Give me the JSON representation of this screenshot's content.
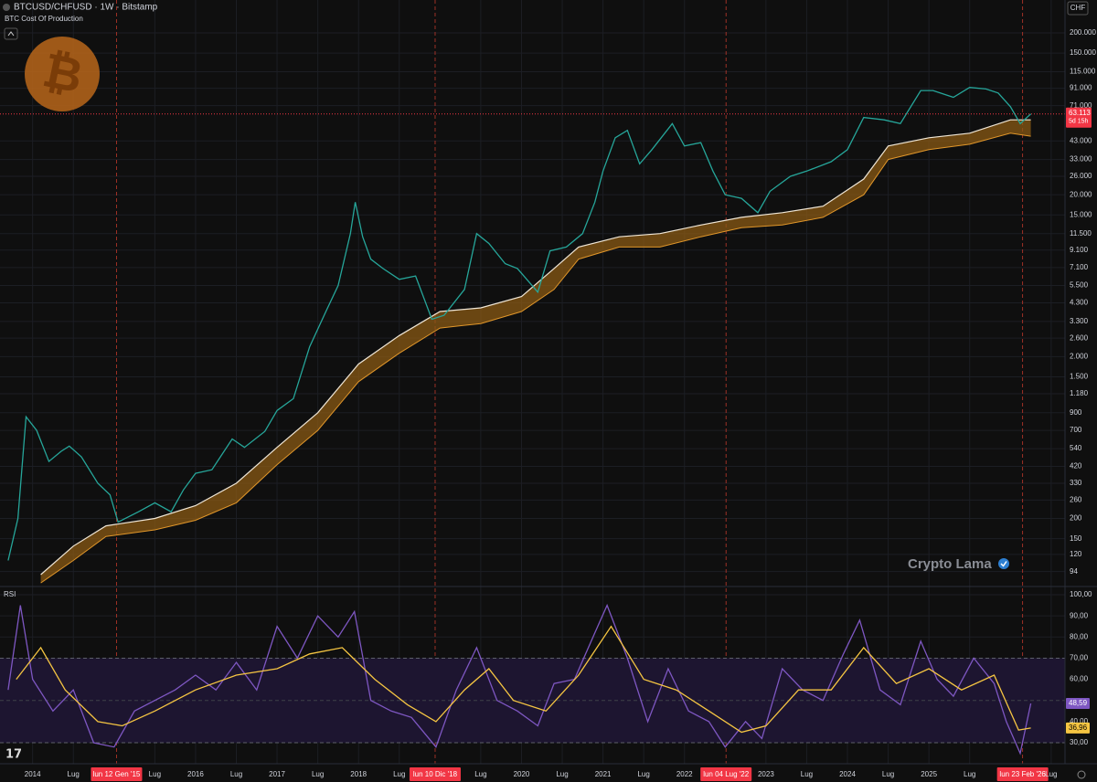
{
  "header": {
    "symbol": "BTCUSD/CHFUSD · 1W · Bitstamp",
    "indicator": "BTC Cost Of Production",
    "currency": "CHF",
    "watermark": "Crypto Lama"
  },
  "chart_data": [
    {
      "type": "line",
      "log_scale": true,
      "grid": true,
      "xlim": [
        2013.6,
        2026.67
      ],
      "ylim": [
        78,
        311000
      ],
      "yticks": [
        {
          "value": 200000,
          "label": "200.000"
        },
        {
          "value": 150000,
          "label": "150.000"
        },
        {
          "value": 115000,
          "label": "115.000"
        },
        {
          "value": 91000,
          "label": "91.000"
        },
        {
          "value": 71000,
          "label": "71.000"
        },
        {
          "value": 43000,
          "label": "43.000"
        },
        {
          "value": 33000,
          "label": "33.000"
        },
        {
          "value": 26000,
          "label": "26.000"
        },
        {
          "value": 20000,
          "label": "20.000"
        },
        {
          "value": 15000,
          "label": "15.000"
        },
        {
          "value": 11500,
          "label": "11.500"
        },
        {
          "value": 9100,
          "label": "9.100"
        },
        {
          "value": 7100,
          "label": "7.100"
        },
        {
          "value": 5500,
          "label": "5.500"
        },
        {
          "value": 4300,
          "label": "4.300"
        },
        {
          "value": 3300,
          "label": "3.300"
        },
        {
          "value": 2600,
          "label": "2.600"
        },
        {
          "value": 2000,
          "label": "2.000"
        },
        {
          "value": 1500,
          "label": "1.500"
        },
        {
          "value": 1180,
          "label": "1.180"
        },
        900,
        700,
        540,
        420,
        330,
        260,
        200,
        150,
        120,
        94
      ],
      "series": [
        {
          "color": "#26a69a",
          "x": [
            2013.7,
            2013.82,
            2013.92,
            2014.05,
            2014.2,
            2014.35,
            2014.45,
            2014.6,
            2014.8,
            2014.95,
            2015.05,
            2015.3,
            2015.5,
            2015.7,
            2015.85,
            2016.0,
            2016.2,
            2016.45,
            2016.6,
            2016.85,
            2017.0,
            2017.2,
            2017.4,
            2017.6,
            2017.75,
            2017.9,
            2017.96,
            2018.05,
            2018.15,
            2018.3,
            2018.5,
            2018.7,
            2018.9,
            2019.05,
            2019.3,
            2019.45,
            2019.6,
            2019.8,
            2019.95,
            2020.2,
            2020.35,
            2020.55,
            2020.75,
            2020.9,
            2021.0,
            2021.15,
            2021.3,
            2021.45,
            2021.6,
            2021.85,
            2022.0,
            2022.2,
            2022.35,
            2022.5,
            2022.7,
            2022.9,
            2023.05,
            2023.3,
            2023.5,
            2023.8,
            2024.0,
            2024.2,
            2024.45,
            2024.65,
            2024.9,
            2025.05,
            2025.3,
            2025.5,
            2025.7,
            2025.85,
            2026.0,
            2026.12,
            2026.25
          ],
          "values": [
            110,
            200,
            850,
            700,
            450,
            520,
            560,
            480,
            330,
            280,
            190,
            220,
            250,
            220,
            300,
            380,
            400,
            620,
            550,
            690,
            930,
            1100,
            2300,
            3800,
            5500,
            11500,
            18000,
            11000,
            8000,
            7000,
            6000,
            6300,
            3400,
            3600,
            5200,
            11500,
            10000,
            7500,
            7000,
            5000,
            9000,
            9500,
            11500,
            18000,
            28000,
            45000,
            50000,
            31000,
            38000,
            55000,
            40000,
            42000,
            28000,
            20000,
            19000,
            15500,
            21000,
            26000,
            28000,
            32000,
            38000,
            60000,
            58000,
            55000,
            88000,
            88000,
            80000,
            92000,
            90000,
            85000,
            70000,
            55000,
            63113
          ]
        }
      ],
      "cost_band": {
        "color": "#8a5a14",
        "upper_color": "#efe6d6",
        "lower_color": "#e0962a",
        "x": [
          2014.1,
          2014.5,
          2014.9,
          2015.5,
          2016.0,
          2016.5,
          2017.0,
          2017.5,
          2018.0,
          2018.5,
          2019.0,
          2019.5,
          2020.0,
          2020.4,
          2020.7,
          2021.2,
          2021.7,
          2022.2,
          2022.7,
          2023.2,
          2023.7,
          2024.2,
          2024.5,
          2025.0,
          2025.5,
          2026.0,
          2026.25
        ],
        "upper": [
          90,
          135,
          180,
          200,
          240,
          330,
          550,
          900,
          1800,
          2700,
          3800,
          4000,
          4700,
          7000,
          9500,
          11000,
          11500,
          13000,
          14500,
          15500,
          17000,
          25000,
          40000,
          45000,
          48000,
          58000,
          58000
        ],
        "lower": [
          80,
          110,
          155,
          170,
          195,
          250,
          430,
          700,
          1400,
          2100,
          3000,
          3200,
          3800,
          5200,
          8000,
          9500,
          9500,
          11000,
          12500,
          13000,
          14500,
          20000,
          33000,
          38000,
          41000,
          48000,
          46000
        ]
      },
      "last_price": {
        "value": 63113,
        "label": "63.113"
      },
      "countdown": "5d 15h"
    },
    {
      "type": "line",
      "title": "RSI",
      "grid": true,
      "xlim": [
        2013.6,
        2026.67
      ],
      "ylim": [
        21.8,
        102.6
      ],
      "band_range": [
        30,
        70
      ],
      "band_color": "#1d1530",
      "midline": 50,
      "yticks": [
        {
          "value": 100,
          "label": "100,00"
        },
        {
          "value": 90,
          "label": "90,00"
        },
        {
          "value": 80,
          "label": "80,00"
        },
        {
          "value": 70,
          "label": "70,00"
        },
        {
          "value": 60,
          "label": "60,00"
        },
        {
          "value": 40,
          "label": "40,00"
        },
        {
          "value": 30,
          "label": "30,00"
        }
      ],
      "xticks": [
        2014,
        {
          "value": 2014.5,
          "label": "Lug"
        },
        {
          "value": 2015.03,
          "label": "lun 12 Gen '15",
          "highlight": true
        },
        {
          "value": 2015.5,
          "label": "Lug"
        },
        2016,
        {
          "value": 2016.5,
          "label": "Lug"
        },
        2017,
        {
          "value": 2017.5,
          "label": "Lug"
        },
        2018,
        {
          "value": 2018.5,
          "label": "Lug"
        },
        {
          "value": 2018.94,
          "label": "lun 10 Dic '18",
          "highlight": true
        },
        {
          "value": 2019.5,
          "label": "Lug"
        },
        2020,
        {
          "value": 2020.5,
          "label": "Lug"
        },
        2021,
        {
          "value": 2021.5,
          "label": "Lug"
        },
        2022,
        {
          "value": 2022.51,
          "label": "lun 04 Lug '22",
          "highlight": true
        },
        2023,
        {
          "value": 2023.5,
          "label": "Lug"
        },
        2024,
        {
          "value": 2024.5,
          "label": "Lug"
        },
        2025,
        {
          "value": 2025.5,
          "label": "Lug"
        },
        {
          "value": 2026.15,
          "label": "lun 23 Feb '26",
          "highlight": true
        },
        {
          "value": 2026.5,
          "label": "Lug"
        }
      ],
      "series": [
        {
          "color": "#7e57c2",
          "x": [
            2013.7,
            2013.85,
            2014.0,
            2014.25,
            2014.5,
            2014.75,
            2015.0,
            2015.25,
            2015.5,
            2015.75,
            2016.0,
            2016.25,
            2016.5,
            2016.75,
            2017.0,
            2017.25,
            2017.5,
            2017.75,
            2017.95,
            2018.15,
            2018.4,
            2018.65,
            2018.95,
            2019.2,
            2019.45,
            2019.7,
            2019.95,
            2020.2,
            2020.4,
            2020.65,
            2020.9,
            2021.05,
            2021.3,
            2021.55,
            2021.8,
            2022.05,
            2022.3,
            2022.5,
            2022.75,
            2022.95,
            2023.2,
            2023.45,
            2023.7,
            2023.95,
            2024.15,
            2024.4,
            2024.65,
            2024.9,
            2025.1,
            2025.3,
            2025.55,
            2025.8,
            2025.95,
            2026.12,
            2026.25
          ],
          "values": [
            55,
            95,
            60,
            45,
            55,
            30,
            28,
            45,
            50,
            55,
            62,
            55,
            68,
            55,
            85,
            70,
            90,
            80,
            92,
            50,
            45,
            42,
            28,
            55,
            75,
            50,
            45,
            38,
            58,
            60,
            82,
            95,
            70,
            40,
            65,
            45,
            40,
            28,
            40,
            32,
            65,
            55,
            50,
            72,
            88,
            55,
            48,
            78,
            60,
            52,
            70,
            58,
            40,
            25,
            48.59
          ],
          "last_label": "48,59"
        },
        {
          "color": "#f5c542",
          "x": [
            2013.8,
            2014.1,
            2014.4,
            2014.8,
            2015.1,
            2015.5,
            2016.0,
            2016.5,
            2017.0,
            2017.4,
            2017.8,
            2018.2,
            2018.6,
            2018.95,
            2019.3,
            2019.6,
            2019.9,
            2020.3,
            2020.7,
            2021.1,
            2021.5,
            2021.9,
            2022.3,
            2022.7,
            2023.0,
            2023.4,
            2023.8,
            2024.2,
            2024.6,
            2025.0,
            2025.4,
            2025.8,
            2026.1,
            2026.25
          ],
          "values": [
            60,
            75,
            55,
            40,
            38,
            45,
            55,
            62,
            65,
            72,
            75,
            60,
            48,
            40,
            55,
            65,
            50,
            45,
            62,
            85,
            60,
            55,
            45,
            35,
            38,
            55,
            55,
            75,
            58,
            65,
            55,
            62,
            36,
            36.96
          ],
          "last_label": "36,96"
        }
      ]
    }
  ]
}
